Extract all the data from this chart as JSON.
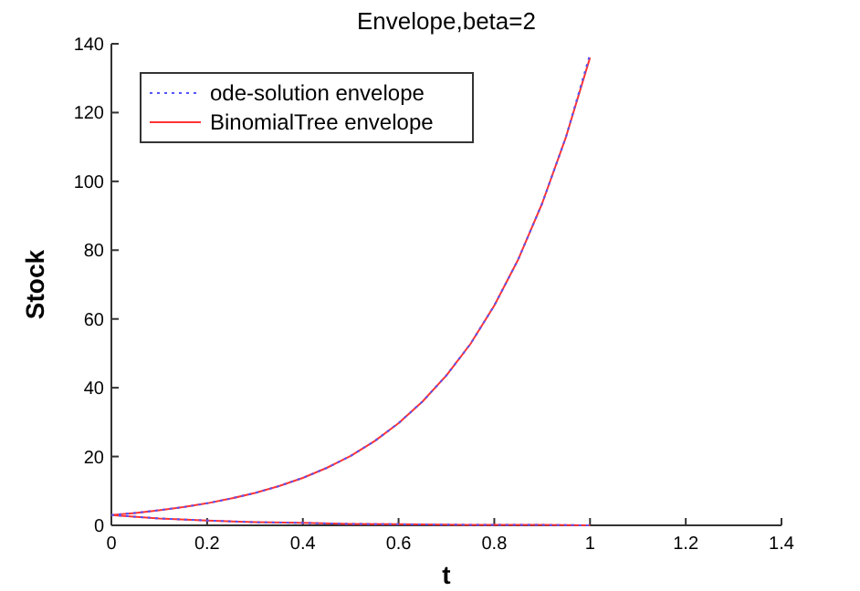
{
  "chart_data": {
    "type": "line",
    "title": "Envelope,beta=2",
    "xlabel": "t",
    "ylabel": "Stock",
    "xlim": [
      0,
      1.4
    ],
    "xticks": [
      0,
      0.2,
      0.4,
      0.6,
      0.8,
      1,
      1.2,
      1.4
    ],
    "ylim": [
      0,
      140
    ],
    "yticks": [
      0,
      20,
      40,
      60,
      80,
      100,
      120,
      140
    ],
    "grid": false,
    "legend": "top left",
    "marker": "none",
    "x": [
      0,
      0.05,
      0.1,
      0.15,
      0.2,
      0.25,
      0.3,
      0.35,
      0.4,
      0.45,
      0.5,
      0.55,
      0.6,
      0.65,
      0.7,
      0.75,
      0.8,
      0.85,
      0.9,
      0.95,
      1,
      null,
      0,
      0.1,
      0.2,
      0.3,
      0.4,
      0.5,
      0.6,
      0.7,
      0.8,
      0.9,
      1
    ],
    "series": [
      {
        "name": "ode-solution envelope",
        "color": "#5555ff",
        "line_style": "dotted",
        "values": [
          3,
          3.6,
          4.4,
          5.3,
          6.4,
          7.8,
          9.4,
          11.4,
          13.8,
          16.7,
          20.2,
          24.5,
          29.7,
          36,
          43.6,
          52.7,
          63.9,
          77.3,
          93.6,
          113,
          137,
          null,
          3,
          2,
          1.4,
          0.9,
          0.7,
          0.4,
          0.3,
          0.2,
          0.1,
          0.1,
          0
        ]
      },
      {
        "name": "BinomialTree envelope",
        "color": "#ff3333",
        "line_style": "solid",
        "values": [
          3,
          3.6,
          4.4,
          5.3,
          6.4,
          7.8,
          9.4,
          11.4,
          13.8,
          16.7,
          20.2,
          24.5,
          29.7,
          36,
          43.6,
          52.7,
          63.9,
          77.3,
          93.6,
          113,
          136,
          null,
          3,
          2,
          1.4,
          0.9,
          0.7,
          0.4,
          0.3,
          0.2,
          0.1,
          0.1,
          0
        ]
      }
    ]
  }
}
